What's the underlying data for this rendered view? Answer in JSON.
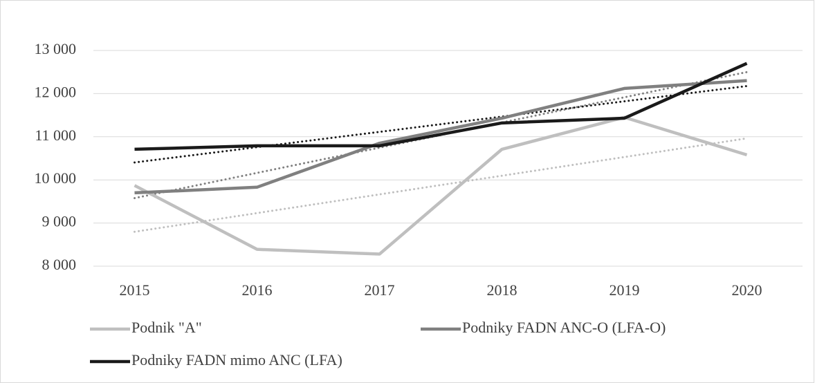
{
  "chart_data": {
    "type": "line",
    "categories": [
      "2015",
      "2016",
      "2017",
      "2018",
      "2019",
      "2020"
    ],
    "series": [
      {
        "name": "Podnik \"A\"",
        "color": "#bfbfbf",
        "values": [
          9870,
          8390,
          8280,
          10710,
          11450,
          10580
        ]
      },
      {
        "name": "Podniky FADN ANC-O (LFA-O)",
        "color": "#808080",
        "values": [
          9700,
          9830,
          10850,
          11430,
          12120,
          12300
        ]
      },
      {
        "name": "Podniky FADN mimo ANC (LFA)",
        "color": "#1a1a1a",
        "values": [
          10710,
          10790,
          10790,
          11320,
          11430,
          12700
        ]
      }
    ],
    "ylim": [
      8000,
      13000
    ],
    "yticks": [
      {
        "value": 8000,
        "label": "8 000"
      },
      {
        "value": 9000,
        "label": "9 000"
      },
      {
        "value": 10000,
        "label": "10 000"
      },
      {
        "value": 11000,
        "label": "11 000"
      },
      {
        "value": 12000,
        "label": "12 000"
      },
      {
        "value": 13000,
        "label": "13 000"
      }
    ],
    "grid": true,
    "trendline": true,
    "legend": "bottom"
  }
}
